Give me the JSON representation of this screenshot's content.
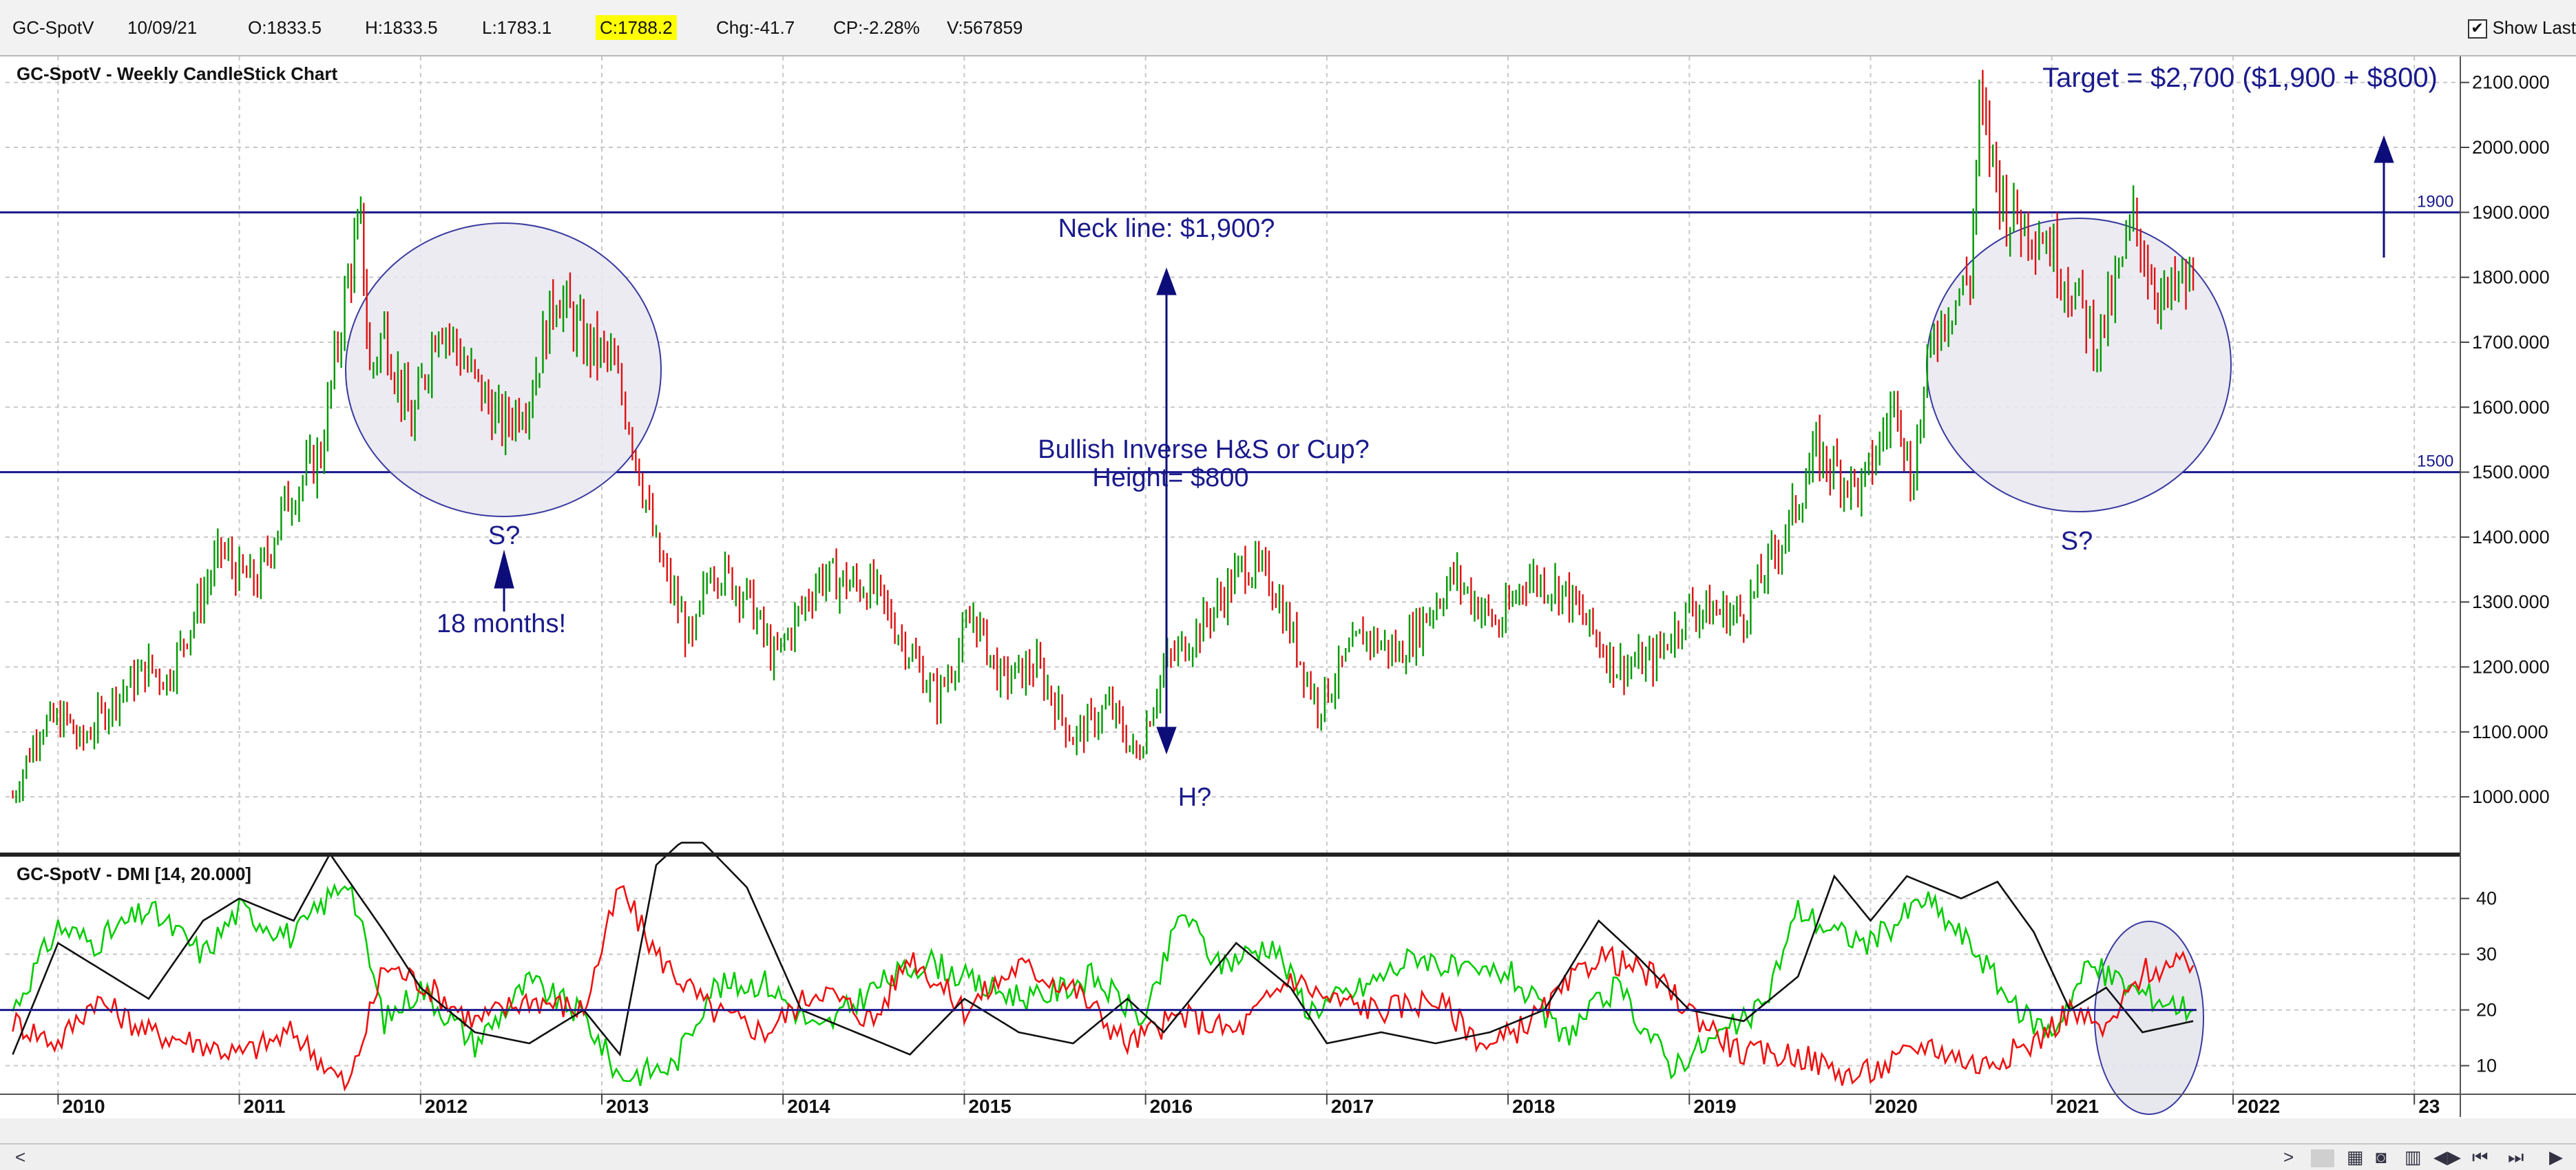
{
  "quote_bar": {
    "symbol": "GC-SpotV",
    "date": "10/09/21",
    "open": "O:1833.5",
    "high": "H:1833.5",
    "low": "L:1783.1",
    "close": "C:1788.2",
    "change": "Chg:-41.7",
    "change_pct": "CP:-2.28%",
    "volume": "V:567859",
    "show_last_label": "Show Last",
    "show_last_checked": "✔"
  },
  "chart_data": [
    {
      "type": "candlestick",
      "title": "GC-SpotV - Weekly CandleStick Chart",
      "ylim": [
        910,
        2140
      ],
      "yticks": [
        "1000.000",
        "1100.000",
        "1200.000",
        "1300.000",
        "1400.000",
        "1500.000",
        "1600.000",
        "1700.000",
        "1800.000",
        "1900.000",
        "2000.000",
        "2100.000"
      ],
      "colors": {
        "up": "#009900",
        "down": "#dd1111",
        "annotation": "#1a1a8c"
      },
      "series_anchors": [
        {
          "x": 2009.75,
          "close": 1000
        },
        {
          "x": 2009.9,
          "close": 1110
        },
        {
          "x": 2010.05,
          "close": 1120
        },
        {
          "x": 2010.12,
          "close": 1080
        },
        {
          "x": 2010.3,
          "close": 1150
        },
        {
          "x": 2010.5,
          "close": 1200
        },
        {
          "x": 2010.6,
          "close": 1180
        },
        {
          "x": 2010.9,
          "close": 1380
        },
        {
          "x": 2011.0,
          "close": 1340
        },
        {
          "x": 2011.1,
          "close": 1330
        },
        {
          "x": 2011.25,
          "close": 1450
        },
        {
          "x": 2011.45,
          "close": 1530
        },
        {
          "x": 2011.6,
          "close": 1800
        },
        {
          "x": 2011.67,
          "close": 1880
        },
        {
          "x": 2011.72,
          "close": 1650
        },
        {
          "x": 2011.8,
          "close": 1720
        },
        {
          "x": 2011.95,
          "close": 1570
        },
        {
          "x": 2012.1,
          "close": 1740
        },
        {
          "x": 2012.3,
          "close": 1640
        },
        {
          "x": 2012.45,
          "close": 1570
        },
        {
          "x": 2012.6,
          "close": 1620
        },
        {
          "x": 2012.75,
          "close": 1780
        },
        {
          "x": 2012.9,
          "close": 1700
        },
        {
          "x": 2013.05,
          "close": 1670
        },
        {
          "x": 2013.15,
          "close": 1580
        },
        {
          "x": 2013.3,
          "close": 1380
        },
        {
          "x": 2013.5,
          "close": 1230
        },
        {
          "x": 2013.6,
          "close": 1360
        },
        {
          "x": 2013.8,
          "close": 1310
        },
        {
          "x": 2013.95,
          "close": 1210
        },
        {
          "x": 2014.2,
          "close": 1340
        },
        {
          "x": 2014.5,
          "close": 1320
        },
        {
          "x": 2014.85,
          "close": 1150
        },
        {
          "x": 2015.05,
          "close": 1280
        },
        {
          "x": 2015.2,
          "close": 1180
        },
        {
          "x": 2015.4,
          "close": 1200
        },
        {
          "x": 2015.6,
          "close": 1090
        },
        {
          "x": 2015.8,
          "close": 1140
        },
        {
          "x": 2015.95,
          "close": 1060
        },
        {
          "x": 2016.1,
          "close": 1200
        },
        {
          "x": 2016.3,
          "close": 1260
        },
        {
          "x": 2016.55,
          "close": 1360
        },
        {
          "x": 2016.7,
          "close": 1330
        },
        {
          "x": 2016.95,
          "close": 1140
        },
        {
          "x": 2017.2,
          "close": 1250
        },
        {
          "x": 2017.4,
          "close": 1220
        },
        {
          "x": 2017.7,
          "close": 1340
        },
        {
          "x": 2017.95,
          "close": 1260
        },
        {
          "x": 2018.1,
          "close": 1340
        },
        {
          "x": 2018.3,
          "close": 1320
        },
        {
          "x": 2018.6,
          "close": 1200
        },
        {
          "x": 2018.8,
          "close": 1210
        },
        {
          "x": 2019.0,
          "close": 1290
        },
        {
          "x": 2019.3,
          "close": 1280
        },
        {
          "x": 2019.55,
          "close": 1420
        },
        {
          "x": 2019.7,
          "close": 1530
        },
        {
          "x": 2019.95,
          "close": 1470
        },
        {
          "x": 2020.15,
          "close": 1620
        },
        {
          "x": 2020.22,
          "close": 1480
        },
        {
          "x": 2020.35,
          "close": 1720
        },
        {
          "x": 2020.55,
          "close": 1800
        },
        {
          "x": 2020.6,
          "close": 2060
        },
        {
          "x": 2020.75,
          "close": 1900
        },
        {
          "x": 2020.95,
          "close": 1870
        },
        {
          "x": 2021.15,
          "close": 1760
        },
        {
          "x": 2021.25,
          "close": 1700
        },
        {
          "x": 2021.35,
          "close": 1780
        },
        {
          "x": 2021.45,
          "close": 1890
        },
        {
          "x": 2021.55,
          "close": 1800
        },
        {
          "x": 2021.62,
          "close": 1760
        },
        {
          "x": 2021.72,
          "close": 1790
        },
        {
          "x": 2021.78,
          "close": 1788
        }
      ],
      "hlines": [
        {
          "y": 1900,
          "label": "1900"
        },
        {
          "y": 1500,
          "label": "1500"
        }
      ],
      "annotations": {
        "target": "Target = $2,700 ($1,900 + $800)",
        "neckline": "Neck line: $1,900?",
        "pattern_line1": "Bullish Inverse H&S or Cup?",
        "pattern_line2": "Height= $800",
        "left_shoulder": "S?",
        "duration": "18 months!",
        "head": "H?",
        "right_shoulder": "S?"
      }
    },
    {
      "type": "line",
      "title": "GC-SpotV - DMI [14, 20.000]",
      "ylim": [
        5,
        47
      ],
      "yticks": [
        "10",
        "20",
        "30",
        "40"
      ],
      "reference_line": 20,
      "series": [
        {
          "color": "#00cc00",
          "points": [
            [
              2009.75,
              20
            ],
            [
              2010.0,
              35
            ],
            [
              2010.2,
              32
            ],
            [
              2010.5,
              38
            ],
            [
              2010.8,
              30
            ],
            [
              2011.0,
              38
            ],
            [
              2011.3,
              33
            ],
            [
              2011.6,
              44
            ],
            [
              2011.8,
              18
            ],
            [
              2012.0,
              24
            ],
            [
              2012.3,
              14
            ],
            [
              2012.6,
              25
            ],
            [
              2012.9,
              19
            ],
            [
              2013.1,
              8
            ],
            [
              2013.4,
              10
            ],
            [
              2013.6,
              24
            ],
            [
              2013.9,
              25
            ],
            [
              2014.2,
              16
            ],
            [
              2014.5,
              24
            ],
            [
              2014.8,
              29
            ],
            [
              2015.1,
              24
            ],
            [
              2015.4,
              22
            ],
            [
              2015.7,
              26
            ],
            [
              2016.0,
              18
            ],
            [
              2016.2,
              38
            ],
            [
              2016.4,
              28
            ],
            [
              2016.7,
              32
            ],
            [
              2016.9,
              20
            ],
            [
              2017.2,
              24
            ],
            [
              2017.5,
              30
            ],
            [
              2017.8,
              26
            ],
            [
              2018.0,
              27
            ],
            [
              2018.3,
              15
            ],
            [
              2018.6,
              24
            ],
            [
              2018.9,
              10
            ],
            [
              2019.2,
              16
            ],
            [
              2019.4,
              20
            ],
            [
              2019.6,
              38
            ],
            [
              2019.8,
              34
            ],
            [
              2020.0,
              32
            ],
            [
              2020.3,
              40
            ],
            [
              2020.6,
              30
            ],
            [
              2020.8,
              20
            ],
            [
              2021.0,
              16
            ],
            [
              2021.2,
              28
            ],
            [
              2021.5,
              23
            ],
            [
              2021.78,
              20
            ]
          ]
        },
        {
          "color": "#ee1111",
          "points": [
            [
              2009.75,
              18
            ],
            [
              2010.0,
              14
            ],
            [
              2010.2,
              22
            ],
            [
              2010.5,
              16
            ],
            [
              2010.8,
              14
            ],
            [
              2011.0,
              12
            ],
            [
              2011.3,
              16
            ],
            [
              2011.6,
              6
            ],
            [
              2011.8,
              28
            ],
            [
              2012.0,
              25
            ],
            [
              2012.3,
              18
            ],
            [
              2012.6,
              22
            ],
            [
              2012.9,
              20
            ],
            [
              2013.1,
              42
            ],
            [
              2013.3,
              30
            ],
            [
              2013.6,
              20
            ],
            [
              2013.9,
              16
            ],
            [
              2014.2,
              24
            ],
            [
              2014.5,
              18
            ],
            [
              2014.7,
              30
            ],
            [
              2015.0,
              20
            ],
            [
              2015.3,
              28
            ],
            [
              2015.6,
              24
            ],
            [
              2015.9,
              14
            ],
            [
              2016.2,
              19
            ],
            [
              2016.5,
              16
            ],
            [
              2016.8,
              26
            ],
            [
              2017.0,
              22
            ],
            [
              2017.3,
              20
            ],
            [
              2017.6,
              22
            ],
            [
              2017.9,
              13
            ],
            [
              2018.2,
              20
            ],
            [
              2018.5,
              30
            ],
            [
              2018.8,
              26
            ],
            [
              2019.0,
              20
            ],
            [
              2019.3,
              12
            ],
            [
              2019.6,
              12
            ],
            [
              2019.9,
              8
            ],
            [
              2020.1,
              10
            ],
            [
              2020.3,
              14
            ],
            [
              2020.6,
              10
            ],
            [
              2020.9,
              14
            ],
            [
              2021.1,
              20
            ],
            [
              2021.3,
              16
            ],
            [
              2021.5,
              27
            ],
            [
              2021.78,
              28
            ]
          ]
        },
        {
          "color": "#111111",
          "points": [
            [
              2009.75,
              12
            ],
            [
              2010.0,
              32
            ],
            [
              2010.2,
              28
            ],
            [
              2010.5,
              22
            ],
            [
              2010.8,
              36
            ],
            [
              2011.0,
              40
            ],
            [
              2011.3,
              36
            ],
            [
              2011.5,
              48
            ],
            [
              2011.8,
              34
            ],
            [
              2012.0,
              24
            ],
            [
              2012.3,
              16
            ],
            [
              2012.6,
              14
            ],
            [
              2012.9,
              20
            ],
            [
              2013.1,
              12
            ],
            [
              2013.3,
              46
            ],
            [
              2013.5,
              52
            ],
            [
              2013.8,
              42
            ],
            [
              2014.1,
              20
            ],
            [
              2014.4,
              16
            ],
            [
              2014.7,
              12
            ],
            [
              2015.0,
              22
            ],
            [
              2015.3,
              16
            ],
            [
              2015.6,
              14
            ],
            [
              2015.9,
              22
            ],
            [
              2016.1,
              16
            ],
            [
              2016.5,
              32
            ],
            [
              2016.8,
              24
            ],
            [
              2017.0,
              14
            ],
            [
              2017.3,
              16
            ],
            [
              2017.6,
              14
            ],
            [
              2017.9,
              16
            ],
            [
              2018.2,
              20
            ],
            [
              2018.5,
              36
            ],
            [
              2018.7,
              30
            ],
            [
              2019.0,
              20
            ],
            [
              2019.3,
              18
            ],
            [
              2019.6,
              26
            ],
            [
              2019.8,
              44
            ],
            [
              2020.0,
              36
            ],
            [
              2020.2,
              44
            ],
            [
              2020.5,
              40
            ],
            [
              2020.7,
              43
            ],
            [
              2020.9,
              34
            ],
            [
              2021.1,
              20
            ],
            [
              2021.3,
              24
            ],
            [
              2021.5,
              16
            ],
            [
              2021.78,
              18
            ]
          ]
        }
      ]
    }
  ],
  "x_axis": {
    "labels": [
      "2010",
      "2011",
      "2012",
      "2013",
      "2014",
      "2015",
      "2016",
      "2017",
      "2018",
      "2019",
      "2020",
      "2021",
      "2022",
      "23"
    ],
    "xlim": [
      2009.71,
      2023.25
    ]
  },
  "navigation": {
    "scroll_left": "<",
    "scroll_right": ">",
    "controls": [
      "▦",
      "◙",
      "▥",
      "◀▶",
      "⏮",
      "⏭",
      "▶"
    ]
  }
}
